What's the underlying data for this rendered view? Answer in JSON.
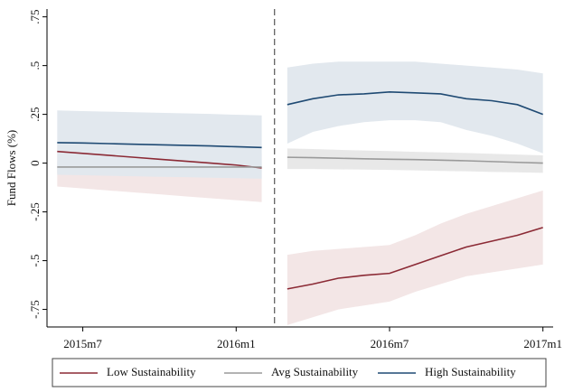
{
  "chart_data": {
    "type": "line",
    "y_label": "Fund Flows (%)",
    "x": [
      665,
      666,
      667,
      668,
      669,
      670,
      671,
      672,
      673,
      673.5,
      674,
      675,
      676,
      677,
      678,
      679,
      680,
      681,
      682,
      683,
      684
    ],
    "xlim": [
      664.6,
      684.4
    ],
    "xticks": [
      {
        "value": 666,
        "label": "2015m7"
      },
      {
        "value": 672,
        "label": "2016m1"
      },
      {
        "value": 678,
        "label": "2016m7"
      },
      {
        "value": 684,
        "label": "2017m1"
      }
    ],
    "ylim": [
      -0.84,
      0.79
    ],
    "yticks": [
      {
        "value": -0.75,
        "label": "-.75"
      },
      {
        "value": -0.5,
        "label": "-.5"
      },
      {
        "value": -0.25,
        "label": "-.25"
      },
      0,
      {
        "value": 0.25,
        "label": ".25"
      },
      {
        "value": 0.5,
        "label": ".5"
      },
      {
        "value": 0.75,
        "label": ".75"
      }
    ],
    "vline": 673.5,
    "series": [
      {
        "name": "Low Sustainability",
        "color": "#8b2a35",
        "band_color": "#f3e6e6",
        "values": [
          0.06,
          0.05,
          0.04,
          0.03,
          0.02,
          0.01,
          0.0,
          -0.01,
          -0.025,
          null,
          -0.645,
          -0.62,
          -0.59,
          -0.575,
          -0.565,
          -0.52,
          -0.475,
          -0.43,
          -0.4,
          -0.37,
          -0.33
        ],
        "upper": [
          0.1,
          0.095,
          0.09,
          0.085,
          0.08,
          0.075,
          0.07,
          0.06,
          0.05,
          null,
          -0.47,
          -0.45,
          -0.44,
          -0.43,
          -0.42,
          -0.37,
          -0.31,
          -0.26,
          -0.22,
          -0.18,
          -0.14
        ],
        "lower": [
          -0.12,
          -0.13,
          -0.14,
          -0.15,
          -0.16,
          -0.17,
          -0.18,
          -0.19,
          -0.2,
          null,
          -0.83,
          -0.79,
          -0.75,
          -0.73,
          -0.71,
          -0.66,
          -0.62,
          -0.58,
          -0.56,
          -0.54,
          -0.52
        ]
      },
      {
        "name": "Avg Sustainability",
        "color": "#9a9a9a",
        "band_color": "#e8e8e8",
        "values": [
          -0.02,
          -0.02,
          -0.02,
          -0.02,
          -0.02,
          -0.02,
          -0.02,
          -0.02,
          -0.02,
          null,
          0.03,
          0.028,
          0.025,
          0.022,
          0.02,
          0.018,
          0.015,
          0.012,
          0.008,
          0.004,
          0.0
        ],
        "upper": [
          0.01,
          0.01,
          0.01,
          0.01,
          0.01,
          0.01,
          0.01,
          0.01,
          0.01,
          null,
          0.075,
          0.072,
          0.068,
          0.065,
          0.062,
          0.058,
          0.055,
          0.052,
          0.048,
          0.044,
          0.04
        ],
        "lower": [
          -0.05,
          -0.05,
          -0.05,
          -0.05,
          -0.05,
          -0.05,
          -0.05,
          -0.05,
          -0.05,
          null,
          -0.03,
          -0.03,
          -0.032,
          -0.033,
          -0.035,
          -0.037,
          -0.04,
          -0.042,
          -0.045,
          -0.047,
          -0.05
        ]
      },
      {
        "name": "High Sustainability",
        "color": "#1f4a73",
        "band_color": "#e2e8ee",
        "values": [
          0.105,
          0.103,
          0.1,
          0.097,
          0.094,
          0.091,
          0.088,
          0.084,
          0.08,
          null,
          0.3,
          0.33,
          0.35,
          0.355,
          0.365,
          0.36,
          0.355,
          0.33,
          0.32,
          0.3,
          0.25
        ],
        "upper": [
          0.27,
          0.267,
          0.264,
          0.261,
          0.258,
          0.255,
          0.252,
          0.248,
          0.245,
          null,
          0.49,
          0.51,
          0.52,
          0.52,
          0.52,
          0.52,
          0.51,
          0.5,
          0.49,
          0.48,
          0.46
        ],
        "lower": [
          -0.06,
          -0.062,
          -0.065,
          -0.067,
          -0.07,
          -0.072,
          -0.075,
          -0.077,
          -0.08,
          null,
          0.1,
          0.16,
          0.19,
          0.21,
          0.22,
          0.22,
          0.21,
          0.17,
          0.14,
          0.1,
          0.05
        ]
      }
    ]
  }
}
